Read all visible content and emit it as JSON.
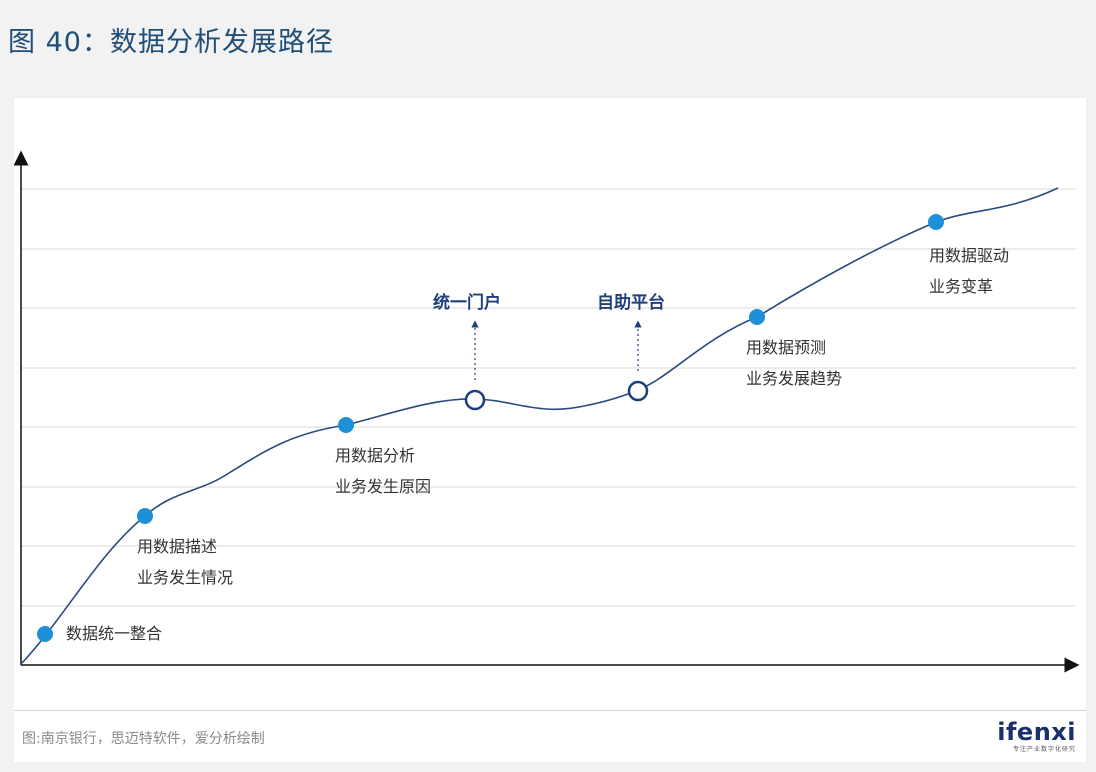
{
  "figure": {
    "title": "图 40：数据分析发展路径",
    "source": "图:南京银行，思迈特软件，爱分析绘制",
    "logo": "ifenxi",
    "logo_tagline": "专注产业数字化研究"
  },
  "stages": [
    {
      "lines": [
        "数据统一整合"
      ]
    },
    {
      "lines": [
        "用数据描述",
        "业务发生情况"
      ]
    },
    {
      "lines": [
        "用数据分析",
        "业务发生原因"
      ]
    },
    {
      "lines": [
        "用数据预测",
        "业务发展趋势"
      ]
    },
    {
      "lines": [
        "用数据驱动",
        "业务变革"
      ]
    }
  ],
  "milestones": [
    {
      "label": "统一门户"
    },
    {
      "label": "自助平台"
    }
  ],
  "colors": {
    "curve": "#2b4a7e",
    "stage_dot": "#1e90d8",
    "milestone_ring": "#1a3f7a",
    "grid": "#d9d9d9",
    "title": "#1f4e79"
  }
}
